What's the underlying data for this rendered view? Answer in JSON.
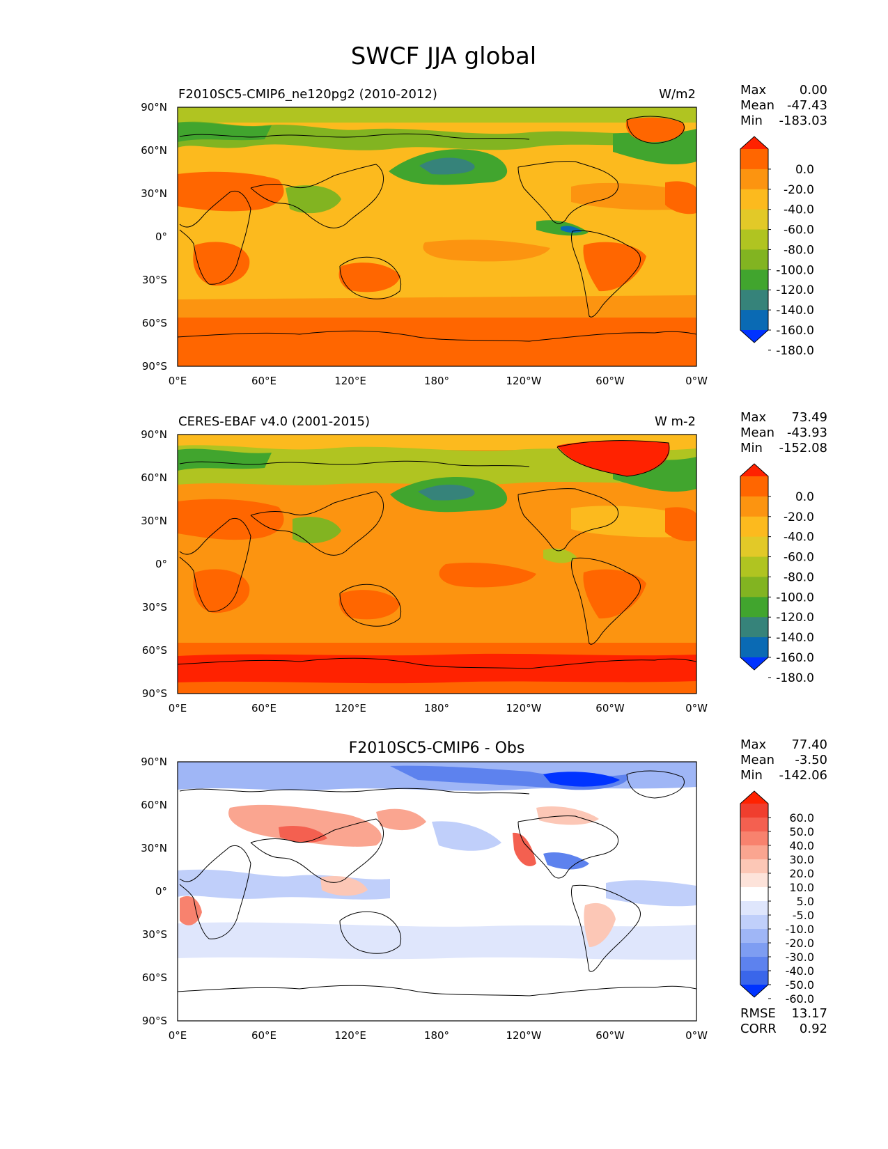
{
  "figure": {
    "title": "SWCF JJA global"
  },
  "axes": {
    "lat_ticks": [
      "90°N",
      "60°N",
      "30°N",
      "0°",
      "30°S",
      "60°S",
      "90°S"
    ],
    "lon_ticks": [
      "0°E",
      "60°E",
      "120°E",
      "180°",
      "120°W",
      "60°W",
      "0°W"
    ]
  },
  "chart_data": [
    {
      "type": "heatmap",
      "panel": "test",
      "title_left": "F2010SC5-CMIP6_ne120pg2 (2010-2012)",
      "title_right": "W/m2",
      "stats": [
        {
          "label": "Max",
          "value": "0.00"
        },
        {
          "label": "Mean",
          "value": "-47.43"
        },
        {
          "label": "Min",
          "value": "-183.03"
        }
      ],
      "colorbar": {
        "labels": [
          "0.0",
          "-20.0",
          "-40.0",
          "-60.0",
          "-80.0",
          "-100.0",
          "-120.0",
          "-140.0",
          "-160.0",
          "-180.0"
        ],
        "colors": [
          "#ff2200",
          "#ff6600",
          "#fc9410",
          "#fcba1e",
          "#e2c928",
          "#b0c421",
          "#82b421",
          "#41a52e",
          "#36837a",
          "#0a6ab4",
          "#0033ff"
        ]
      }
    },
    {
      "type": "heatmap",
      "panel": "reference",
      "title_left": "CERES-EBAF v4.0 (2001-2015)",
      "title_right": "W m-2",
      "stats": [
        {
          "label": "Max",
          "value": "73.49"
        },
        {
          "label": "Mean",
          "value": "-43.93"
        },
        {
          "label": "Min",
          "value": "-152.08"
        }
      ],
      "colorbar": {
        "labels": [
          "0.0",
          "-20.0",
          "-40.0",
          "-60.0",
          "-80.0",
          "-100.0",
          "-120.0",
          "-140.0",
          "-160.0",
          "-180.0"
        ],
        "colors": [
          "#ff2200",
          "#ff6600",
          "#fc9410",
          "#fcba1e",
          "#e2c928",
          "#b0c421",
          "#82b421",
          "#41a52e",
          "#36837a",
          "#0a6ab4",
          "#0033ff"
        ]
      }
    },
    {
      "type": "heatmap",
      "panel": "difference",
      "title_center": "F2010SC5-CMIP6 - Obs",
      "stats": [
        {
          "label": "Max",
          "value": "77.40"
        },
        {
          "label": "Mean",
          "value": "-3.50"
        },
        {
          "label": "Min",
          "value": "-142.06"
        }
      ],
      "metrics": [
        {
          "label": "RMSE",
          "value": "13.17"
        },
        {
          "label": "CORR",
          "value": "0.92"
        }
      ],
      "colorbar": {
        "labels": [
          "60.0",
          "50.0",
          "40.0",
          "30.0",
          "20.0",
          "10.0",
          "5.0",
          "-5.0",
          "-10.0",
          "-20.0",
          "-30.0",
          "-40.0",
          "-50.0",
          "-60.0"
        ],
        "colors": [
          "#ff2200",
          "#f03e2e",
          "#f46050",
          "#f8826e",
          "#faa590",
          "#fcc7b6",
          "#fde3da",
          "#ffffff",
          "#dfe6fc",
          "#c0cffa",
          "#9fb6f6",
          "#7e9df2",
          "#5d82ee",
          "#3a66ea",
          "#0033ff"
        ]
      }
    }
  ]
}
